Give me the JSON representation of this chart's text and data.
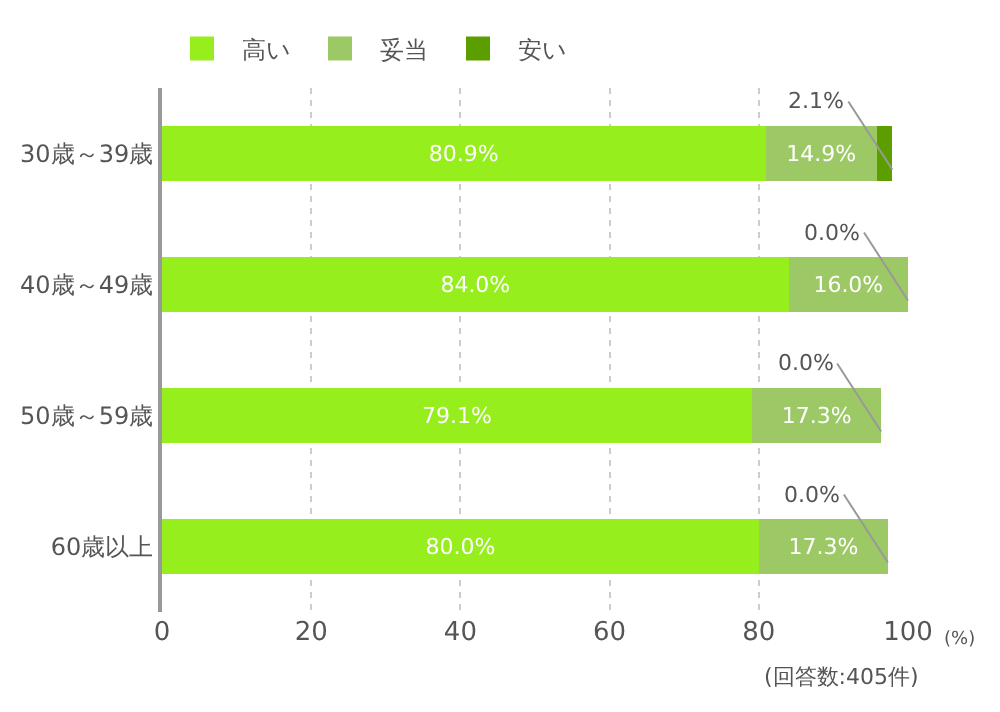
{
  "chart_data": {
    "type": "bar",
    "orientation": "horizontal",
    "stacked": true,
    "categories": [
      "30歳～39歳",
      "40歳～49歳",
      "50歳～59歳",
      "60歳以上"
    ],
    "series": [
      {
        "name": "高い",
        "color": "#96ee1c",
        "values": [
          80.9,
          84.0,
          79.1,
          80.0
        ],
        "value_labels": [
          "80.9%",
          "84.0%",
          "79.1%",
          "80.0%"
        ]
      },
      {
        "name": "妥当",
        "color": "#9dc866",
        "values": [
          14.9,
          16.0,
          17.3,
          17.3
        ],
        "value_labels": [
          "14.9%",
          "16.0%",
          "17.3%",
          "17.3%"
        ]
      },
      {
        "name": "安い",
        "color": "#5c9e00",
        "values": [
          2.1,
          0.0,
          0.0,
          0.0
        ],
        "value_labels": [
          "2.1%",
          "0.0%",
          "0.0%",
          "0.0%"
        ]
      }
    ],
    "xlim": [
      0,
      100
    ],
    "xticks": [
      0,
      20,
      40,
      60,
      80,
      100
    ],
    "grid": "x",
    "legend": "top left",
    "annotations": [
      "(%)",
      "(回答数:405件)"
    ]
  }
}
